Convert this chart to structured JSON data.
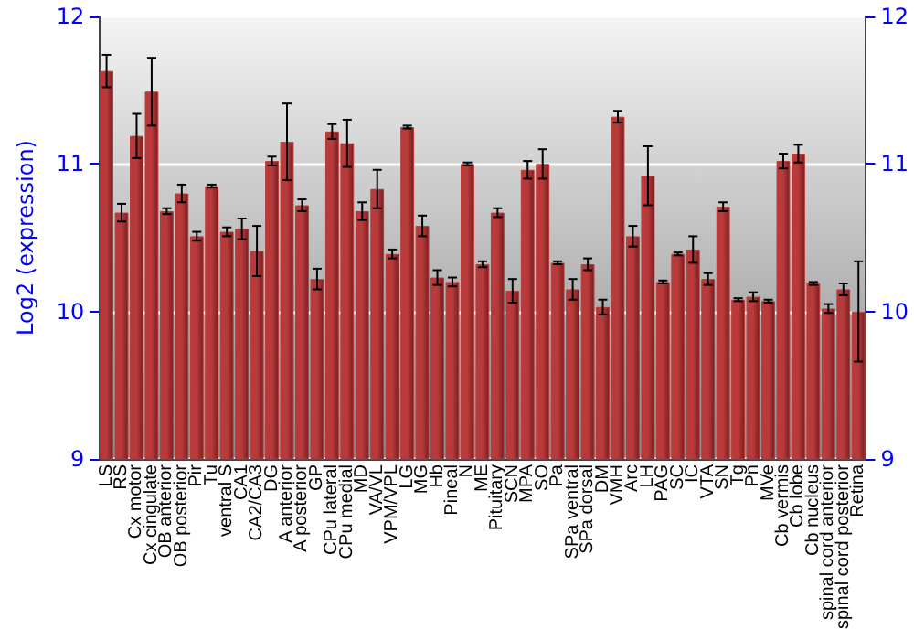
{
  "chart_data": {
    "type": "bar",
    "ylabel": "Log2 (expression)",
    "categories": [
      "LS",
      "RS",
      "Cx motor",
      "Cx cingulate",
      "OB anterior",
      "OB posterior",
      "Pir",
      "Tu",
      "ventral S",
      "CA1",
      "CA2/CA3",
      "DG",
      "A anterior",
      "A posterior",
      "GP",
      "CPu lateral",
      "CPu medial",
      "MD",
      "VA/VL",
      "VPM/VPL",
      "LG",
      "MG",
      "Hb",
      "Pineal",
      "N",
      "ME",
      "Pituitary",
      "SCN",
      "MPA",
      "SO",
      "Pa",
      "SPa ventral",
      "SPa dorsal",
      "DM",
      "VMH",
      "Arc",
      "LH",
      "PAG",
      "SC",
      "IC",
      "VTA",
      "SN",
      "Tg",
      "Pn",
      "MVe",
      "Cb vermis",
      "Cb lobe",
      "Cb nucleus",
      "spinal cord anterior",
      "spinal cord posterior",
      "Retina"
    ],
    "values": [
      11.63,
      10.67,
      11.19,
      11.49,
      10.68,
      10.8,
      10.51,
      10.85,
      10.54,
      10.56,
      10.41,
      11.02,
      11.15,
      10.72,
      10.22,
      11.22,
      11.14,
      10.68,
      10.83,
      10.39,
      11.25,
      10.58,
      10.23,
      10.2,
      11.0,
      10.32,
      10.67,
      10.14,
      10.96,
      11.0,
      10.33,
      10.15,
      10.32,
      10.03,
      11.32,
      10.51,
      10.92,
      10.2,
      10.39,
      10.42,
      10.22,
      10.71,
      10.08,
      10.1,
      10.07,
      11.02,
      11.07,
      10.19,
      10.02,
      10.15,
      10.0
    ],
    "errors": [
      0.11,
      0.06,
      0.15,
      0.23,
      0.02,
      0.06,
      0.03,
      0.01,
      0.03,
      0.07,
      0.17,
      0.03,
      0.26,
      0.04,
      0.07,
      0.05,
      0.16,
      0.06,
      0.13,
      0.03,
      0.01,
      0.07,
      0.05,
      0.03,
      0.01,
      0.02,
      0.03,
      0.08,
      0.06,
      0.1,
      0.01,
      0.07,
      0.04,
      0.05,
      0.04,
      0.07,
      0.2,
      0.01,
      0.01,
      0.09,
      0.04,
      0.03,
      0.01,
      0.03,
      0.01,
      0.05,
      0.06,
      0.01,
      0.03,
      0.04,
      0.34
    ],
    "color": "#b83a3a",
    "ylim": [
      9,
      12
    ],
    "yticks": [
      9,
      10,
      11,
      12
    ],
    "y2lim": [
      9,
      12
    ],
    "y2ticks": [
      9,
      10,
      11,
      12
    ],
    "grid": "y"
  }
}
